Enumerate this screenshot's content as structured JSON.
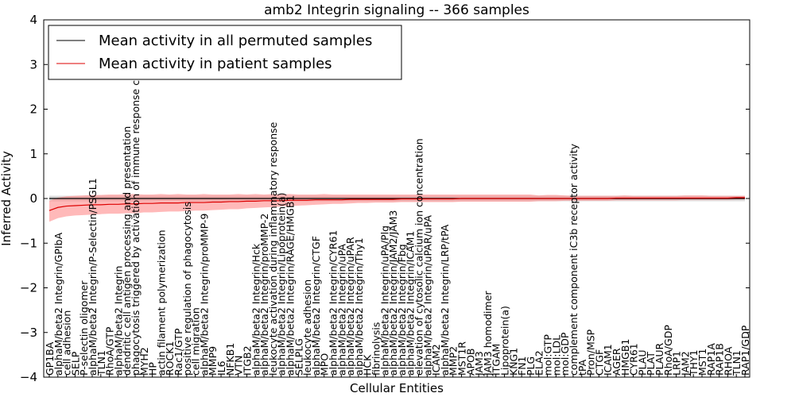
{
  "chart_data": {
    "type": "line",
    "title": "amb2 Integrin signaling -- 366 samples",
    "xlabel": "Cellular Entities",
    "ylabel": "Inferred Activity",
    "ylim": [
      -4,
      4
    ],
    "yticks": [
      -4,
      -3,
      -2,
      -1,
      0,
      1,
      2,
      3,
      4
    ],
    "legend_position": "top-left",
    "categories": [
      "GP1BA",
      "alphaM/beta2 Integrin/GPIbA",
      "cell adhesion",
      "SELP",
      "P-selectin oligomer",
      "alphaM/beta2 Integrin/P-Selectin/PSGL1",
      "TLN1",
      "RhoA/GTP",
      "alphaM/beta2 Integrin",
      "dendritic cell antigen processing and presentation",
      "phagocytosis triggered by activation of immune response cell surface",
      "MYH2",
      "HP",
      "actin filament polymerization",
      "ROCK1",
      "Rac1/GTP",
      "positive regulation of phagocytosis",
      "cell migration",
      "alphaM/beta2 Integrin/proMMP-9",
      "MMP9",
      "IL6",
      "NFKB1",
      "VTN",
      "ITGB2",
      "alphaM/beta2 Integrin/Hck",
      "alphaM/beta2 Integrin/proMMP-2",
      "leukocyte activation during inflammatory response",
      "alphaM/beta2 Integrin/Lipoprotein(a)",
      "alphaM/beta2 Integrin/RAGE/HMGB1",
      "SELPLG",
      "leukocyte adhesion",
      "alphaM/beta2 Integrin/CTGF",
      "MPO",
      "alphaM/beta2 Integrin/CYR61",
      "alphaM/beta2 Integrin/uPA",
      "alphaM/beta2 Integrin/uPAR",
      "alphaM/beta2 Integrin/Thy1",
      "HCK",
      "fibrinolysis",
      "alphaM/beta2 Integrin/uPA/Plg",
      "alphaM/beta2 Integrin/JAM2/JAM3",
      "alphaM/beta2 Integrin/Fbg",
      "alphaM/beta2 Integrin/ICAM1",
      "elevation of cytosolic calcium ion concentration",
      "alphaM/beta2 Integrin/uPAR/uPA",
      "ICAM2",
      "alphaM/beta2 Integrin/LRP/tPA",
      "MMP2",
      "MST1R",
      "APOB",
      "JAM3",
      "JAM3 homodimer",
      "ITGAM",
      "Lipoprotein(a)",
      "KNG1",
      "FN1",
      "PLG",
      "ELA2",
      "mol:GTP",
      "mol:LDL",
      "mol:GDP",
      "complement component iC3b receptor activity",
      "tPA",
      "Pron/MSP",
      "CTGF",
      "ICAM1",
      "AGER",
      "HMGB1",
      "CYR61",
      "PLAU",
      "PLAT",
      "PLAUR",
      "RhoA/GDP",
      "LRP1",
      "JAM2",
      "THY1",
      "MST1",
      "RAP1A",
      "RAP1B",
      "RHOA",
      "TLN1",
      "RAP1/GDP"
    ],
    "series": [
      {
        "name": "Mean activity in all permuted samples",
        "color": "#000000",
        "values": [
          0.0,
          0.0,
          0.0,
          0.0,
          0.0,
          0.0,
          0.0,
          0.0,
          0.0,
          0.0,
          0.0,
          0.0,
          0.0,
          0.0,
          0.0,
          0.0,
          0.0,
          0.0,
          0.0,
          0.0,
          0.0,
          0.0,
          0.0,
          0.0,
          0.0,
          0.0,
          0.0,
          0.0,
          0.0,
          0.0,
          0.0,
          0.0,
          0.0,
          0.0,
          0.0,
          0.0,
          0.0,
          0.0,
          0.0,
          0.0,
          0.0,
          0.0,
          0.0,
          0.0,
          0.0,
          0.0,
          0.0,
          0.0,
          0.0,
          0.0,
          0.0,
          0.0,
          0.0,
          0.0,
          0.0,
          0.0,
          0.0,
          0.0,
          0.0,
          0.0,
          0.0,
          0.0,
          0.0,
          0.0,
          0.0,
          0.0,
          0.0,
          0.0,
          0.0,
          0.0,
          0.0,
          0.0,
          0.0,
          0.0,
          0.0,
          0.0,
          0.0,
          0.0,
          0.0,
          0.0,
          0.0,
          0.0
        ],
        "band": 0.06,
        "band_color": "#aaaaaa"
      },
      {
        "name": "Mean activity in patient samples",
        "color": "#dd0000",
        "values": [
          -0.27,
          -0.2,
          -0.17,
          -0.16,
          -0.15,
          -0.14,
          -0.14,
          -0.13,
          -0.13,
          -0.12,
          -0.12,
          -0.11,
          -0.11,
          -0.1,
          -0.1,
          -0.1,
          -0.09,
          -0.09,
          -0.09,
          -0.08,
          -0.08,
          -0.07,
          -0.07,
          -0.06,
          -0.06,
          -0.05,
          -0.05,
          -0.05,
          -0.04,
          -0.04,
          -0.04,
          -0.03,
          -0.03,
          -0.03,
          -0.03,
          -0.02,
          -0.02,
          -0.02,
          -0.02,
          -0.02,
          -0.02,
          -0.01,
          -0.01,
          -0.01,
          -0.01,
          -0.01,
          -0.01,
          -0.01,
          0.0,
          0.0,
          0.0,
          0.0,
          0.0,
          0.0,
          0.0,
          0.0,
          0.0,
          0.0,
          0.0,
          0.0,
          0.0,
          0.0,
          0.0,
          0.0,
          0.0,
          0.0,
          0.01,
          0.01,
          0.01,
          0.01,
          0.01,
          0.01,
          0.01,
          0.01,
          0.01,
          0.01,
          0.01,
          0.01,
          0.01,
          0.01,
          0.02,
          0.02
        ],
        "band_upper": [
          -0.05,
          0.02,
          0.05,
          0.06,
          0.07,
          0.08,
          0.08,
          0.09,
          0.09,
          0.1,
          0.1,
          0.09,
          0.09,
          0.1,
          0.09,
          0.1,
          0.09,
          0.09,
          0.1,
          0.09,
          0.09,
          0.09,
          0.1,
          0.09,
          0.1,
          0.09,
          0.1,
          0.09,
          0.1,
          0.09,
          0.09,
          0.09,
          0.1,
          0.09,
          0.09,
          0.09,
          0.09,
          0.09,
          0.09,
          0.09,
          0.09,
          0.09,
          0.09,
          0.09,
          0.09,
          0.09,
          0.09,
          0.09,
          0.09,
          0.09,
          0.09,
          0.09,
          0.09,
          0.09,
          0.09,
          0.09,
          0.09,
          0.07,
          0.08,
          0.08,
          0.07,
          0.06,
          0.06,
          0.06,
          0.06,
          0.06,
          0.06,
          0.07,
          0.06,
          0.06,
          0.06,
          0.06,
          0.06,
          0.06,
          0.07,
          0.07,
          0.07,
          0.06,
          0.06,
          0.06,
          0.06,
          0.06
        ],
        "band_lower": [
          -0.52,
          -0.44,
          -0.4,
          -0.38,
          -0.37,
          -0.36,
          -0.35,
          -0.34,
          -0.34,
          -0.33,
          -0.33,
          -0.31,
          -0.31,
          -0.3,
          -0.29,
          -0.29,
          -0.28,
          -0.27,
          -0.27,
          -0.26,
          -0.25,
          -0.24,
          -0.24,
          -0.22,
          -0.21,
          -0.2,
          -0.19,
          -0.18,
          -0.17,
          -0.16,
          -0.15,
          -0.14,
          -0.13,
          -0.12,
          -0.12,
          -0.11,
          -0.1,
          -0.1,
          -0.09,
          -0.09,
          -0.09,
          -0.08,
          -0.08,
          -0.08,
          -0.08,
          -0.08,
          -0.08,
          -0.08,
          -0.07,
          -0.07,
          -0.07,
          -0.07,
          -0.07,
          -0.07,
          -0.07,
          -0.07,
          -0.07,
          -0.06,
          -0.06,
          -0.06,
          -0.05,
          -0.05,
          -0.05,
          -0.05,
          -0.05,
          -0.05,
          -0.04,
          -0.04,
          -0.04,
          -0.04,
          -0.04,
          -0.04,
          -0.04,
          -0.04,
          -0.03,
          -0.03,
          -0.03,
          -0.03,
          -0.03,
          -0.03,
          -0.02,
          -0.02
        ],
        "band_color": "#ff8080"
      }
    ]
  }
}
